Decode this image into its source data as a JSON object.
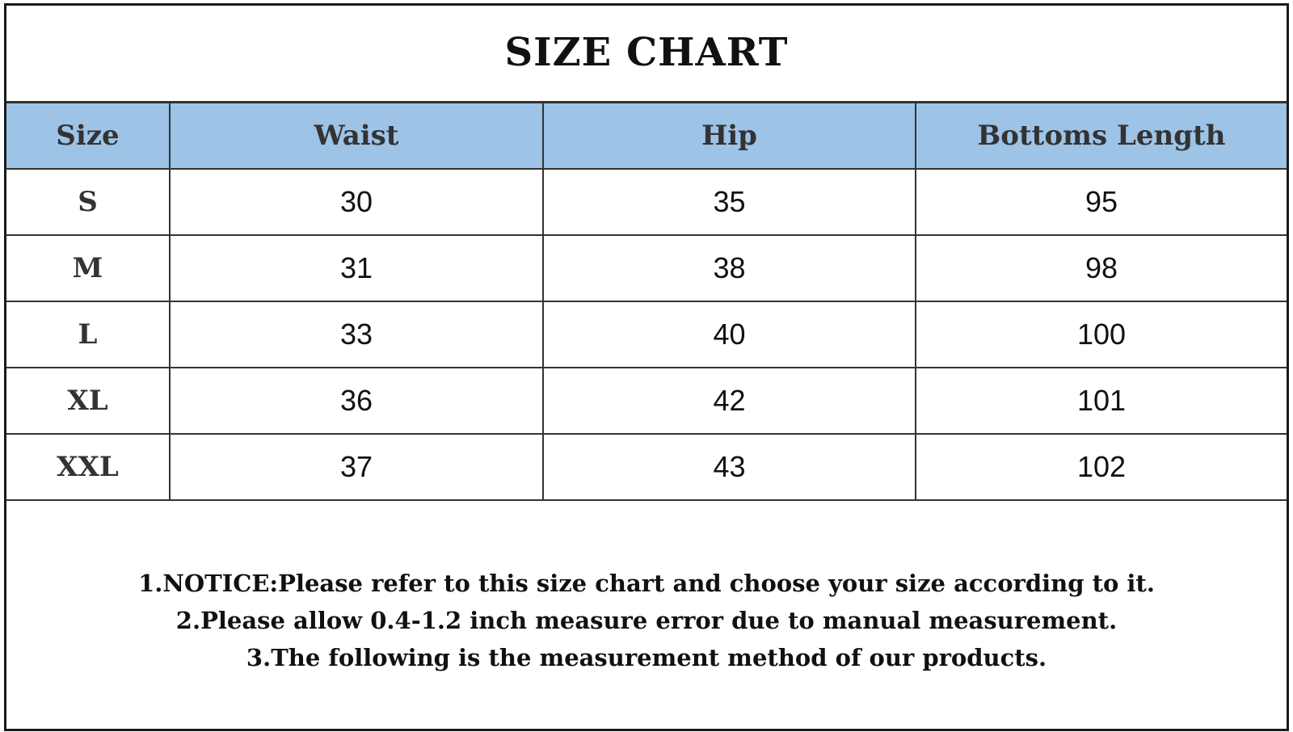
{
  "title": "SIZE CHART",
  "table": {
    "headers": [
      "Size",
      "Waist",
      "Hip",
      "Bottoms Length"
    ],
    "rows": [
      [
        "S",
        "30",
        "35",
        "95"
      ],
      [
        "M",
        "31",
        "38",
        "98"
      ],
      [
        "L",
        "33",
        "40",
        "100"
      ],
      [
        "XL",
        "36",
        "42",
        "101"
      ],
      [
        "XXL",
        "37",
        "43",
        "102"
      ]
    ]
  },
  "header_color": "#9dc3e6",
  "notes": [
    "1.NOTICE:Please refer to this size chart and choose your size according to it.",
    "2.Please allow 0.4-1.2 inch measure error due to manual measurement.",
    "3.The following is the measurement method of our products."
  ]
}
